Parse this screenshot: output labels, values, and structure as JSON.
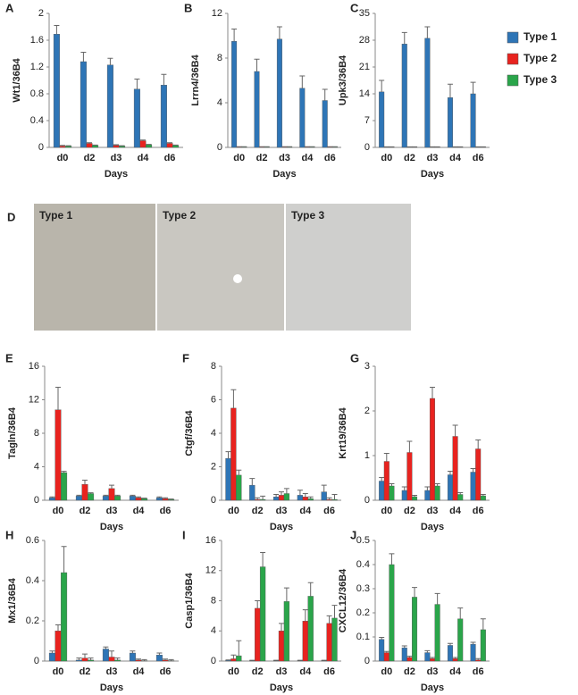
{
  "chart_data": [
    {
      "type": "bar",
      "panel": "A",
      "ylabel": "Wt1/36B4",
      "xlabel": "Days",
      "categories": [
        "d0",
        "d2",
        "d3",
        "d4",
        "d6"
      ],
      "ylim": [
        0,
        2
      ],
      "yticks": [
        0,
        0.4,
        0.8,
        1.2,
        1.6,
        2
      ],
      "series": [
        {
          "color": "#2e75b6",
          "values": [
            1.69,
            1.28,
            1.23,
            0.87,
            0.93
          ],
          "errors": [
            0.13,
            0.14,
            0.1,
            0.15,
            0.16
          ]
        },
        {
          "color": "#e8231f",
          "values": [
            0.02,
            0.06,
            0.03,
            0.1,
            0.06
          ],
          "errors": [
            0.01,
            0.01,
            0.01,
            0.01,
            0.01
          ]
        },
        {
          "color": "#2aa54a",
          "values": [
            0.02,
            0.03,
            0.02,
            0.04,
            0.03
          ],
          "errors": [
            0.005,
            0.005,
            0.005,
            0.005,
            0.005
          ]
        }
      ]
    },
    {
      "type": "bar",
      "panel": "B",
      "ylabel": "Lrrn4/36B4",
      "xlabel": "Days",
      "categories": [
        "d0",
        "d2",
        "d3",
        "d4",
        "d6"
      ],
      "ylim": [
        0,
        12
      ],
      "yticks": [
        0,
        4,
        8,
        12
      ],
      "series": [
        {
          "color": "#2e75b6",
          "values": [
            9.5,
            6.8,
            9.7,
            5.3,
            4.2
          ],
          "errors": [
            1.1,
            1.1,
            1.1,
            1.1,
            1.0
          ]
        },
        {
          "color": "#e8231f",
          "values": [
            0.05,
            0.05,
            0.05,
            0.05,
            0.05
          ],
          "errors": [
            0.01,
            0.01,
            0.01,
            0.01,
            0.01
          ]
        },
        {
          "color": "#2aa54a",
          "values": [
            0.05,
            0.05,
            0.05,
            0.05,
            0.05
          ],
          "errors": [
            0.01,
            0.01,
            0.01,
            0.01,
            0.01
          ]
        }
      ]
    },
    {
      "type": "bar",
      "panel": "C",
      "ylabel": "Upk3/36B4",
      "xlabel": "Days",
      "categories": [
        "d0",
        "d2",
        "d3",
        "d4",
        "d6"
      ],
      "ylim": [
        0,
        35
      ],
      "yticks": [
        0,
        7,
        14,
        21,
        28,
        35
      ],
      "legend": "right",
      "series": [
        {
          "name": "Type 1",
          "color": "#2e75b6",
          "values": [
            14.5,
            27,
            28.5,
            13,
            14
          ],
          "errors": [
            3,
            3,
            3,
            3.5,
            3
          ]
        },
        {
          "name": "Type 2",
          "color": "#e8231f",
          "values": [
            0.1,
            0.1,
            0.1,
            0.1,
            0.1
          ],
          "errors": [
            0.05,
            0.05,
            0.05,
            0.05,
            0.05
          ]
        },
        {
          "name": "Type 3",
          "color": "#2aa54a",
          "values": [
            0.1,
            0.1,
            0.1,
            0.1,
            0.1
          ],
          "errors": [
            0.05,
            0.05,
            0.05,
            0.05,
            0.05
          ]
        }
      ]
    },
    {
      "type": "bar",
      "panel": "E",
      "ylabel": "Tagln/36B4",
      "xlabel": "Days",
      "categories": [
        "d0",
        "d2",
        "d3",
        "d4",
        "d6"
      ],
      "ylim": [
        0,
        16
      ],
      "yticks": [
        0,
        4,
        8,
        12,
        16
      ],
      "series": [
        {
          "color": "#2e75b6",
          "values": [
            0.3,
            0.5,
            0.5,
            0.5,
            0.3
          ],
          "errors": [
            0.1,
            0.1,
            0.1,
            0.1,
            0.1
          ]
        },
        {
          "color": "#e8231f",
          "values": [
            10.8,
            1.9,
            1.4,
            0.3,
            0.2
          ],
          "errors": [
            2.7,
            0.5,
            0.4,
            0.1,
            0.1
          ]
        },
        {
          "color": "#2aa54a",
          "values": [
            3.3,
            0.8,
            0.5,
            0.2,
            0.1
          ],
          "errors": [
            0.15,
            0.1,
            0.1,
            0.05,
            0.05
          ]
        }
      ]
    },
    {
      "type": "bar",
      "panel": "F",
      "ylabel": "Ctgf/36B4",
      "xlabel": "Days",
      "categories": [
        "d0",
        "d2",
        "d3",
        "d4",
        "d6"
      ],
      "ylim": [
        0,
        8
      ],
      "yticks": [
        0,
        2,
        4,
        6,
        8
      ],
      "series": [
        {
          "color": "#2e75b6",
          "values": [
            2.5,
            0.9,
            0.2,
            0.3,
            0.5
          ],
          "errors": [
            0.4,
            0.4,
            0.15,
            0.3,
            0.4
          ]
        },
        {
          "color": "#e8231f",
          "values": [
            5.5,
            0.05,
            0.3,
            0.2,
            0.05
          ],
          "errors": [
            1.1,
            0.1,
            0.2,
            0.2,
            0.1
          ]
        },
        {
          "color": "#2aa54a",
          "values": [
            1.5,
            0.05,
            0.4,
            0.1,
            0.05
          ],
          "errors": [
            0.3,
            0.2,
            0.3,
            0.1,
            0.3
          ]
        }
      ]
    },
    {
      "type": "bar",
      "panel": "G",
      "ylabel": "Krt19/36B4",
      "xlabel": "Days",
      "categories": [
        "d0",
        "d2",
        "d3",
        "d4",
        "d6"
      ],
      "ylim": [
        0,
        3
      ],
      "yticks": [
        0,
        1,
        2,
        3
      ],
      "series": [
        {
          "color": "#2e75b6",
          "values": [
            0.43,
            0.22,
            0.22,
            0.57,
            0.63
          ],
          "errors": [
            0.08,
            0.08,
            0.08,
            0.08,
            0.08
          ]
        },
        {
          "color": "#e8231f",
          "values": [
            0.87,
            1.07,
            2.28,
            1.43,
            1.15
          ],
          "errors": [
            0.18,
            0.25,
            0.25,
            0.25,
            0.2
          ]
        },
        {
          "color": "#2aa54a",
          "values": [
            0.32,
            0.08,
            0.32,
            0.13,
            0.1
          ],
          "errors": [
            0.05,
            0.03,
            0.05,
            0.04,
            0.03
          ]
        }
      ]
    },
    {
      "type": "bar",
      "panel": "H",
      "ylabel": "Mx1/36B4",
      "xlabel": "Days",
      "categories": [
        "d0",
        "d2",
        "d3",
        "d4",
        "d6"
      ],
      "ylim": [
        0,
        0.6
      ],
      "yticks": [
        0,
        0.2,
        0.4,
        0.6
      ],
      "series": [
        {
          "color": "#2e75b6",
          "values": [
            0.04,
            0.005,
            0.06,
            0.04,
            0.03
          ],
          "errors": [
            0.01,
            0.01,
            0.01,
            0.01,
            0.01
          ]
        },
        {
          "color": "#e8231f",
          "values": [
            0.15,
            0.015,
            0.02,
            0.005,
            0.005
          ],
          "errors": [
            0.03,
            0.02,
            0.03,
            0.005,
            0.005
          ]
        },
        {
          "color": "#2aa54a",
          "values": [
            0.44,
            0.005,
            0.005,
            0.002,
            0.002
          ],
          "errors": [
            0.13,
            0.01,
            0.01,
            0.005,
            0.005
          ]
        }
      ]
    },
    {
      "type": "bar",
      "panel": "I",
      "ylabel": "Casp1/36B4",
      "xlabel": "Days",
      "categories": [
        "d0",
        "d2",
        "d3",
        "d4",
        "d6"
      ],
      "ylim": [
        0,
        16
      ],
      "yticks": [
        0,
        4,
        8,
        12,
        16
      ],
      "series": [
        {
          "color": "#2e75b6",
          "values": [
            0.1,
            0.05,
            0.05,
            0.05,
            0.05
          ],
          "errors": [
            0.05,
            0.05,
            0.05,
            0.05,
            0.05
          ]
        },
        {
          "color": "#e8231f",
          "values": [
            0.3,
            7,
            4,
            5.3,
            5
          ],
          "errors": [
            0.5,
            1,
            1,
            1.5,
            1
          ]
        },
        {
          "color": "#2aa54a",
          "values": [
            0.7,
            12.5,
            7.9,
            8.6,
            5.7
          ],
          "errors": [
            2,
            1.9,
            1.8,
            1.8,
            1.7
          ]
        }
      ]
    },
    {
      "type": "bar",
      "panel": "J",
      "ylabel": "CXCL12/36B4",
      "xlabel": "Days",
      "categories": [
        "d0",
        "d2",
        "d3",
        "d4",
        "d6"
      ],
      "ylim": [
        0,
        0.5
      ],
      "yticks": [
        0,
        0.1,
        0.2,
        0.3,
        0.4,
        0.5
      ],
      "series": [
        {
          "color": "#2e75b6",
          "values": [
            0.09,
            0.055,
            0.035,
            0.065,
            0.07
          ],
          "errors": [
            0.008,
            0.008,
            0.008,
            0.008,
            0.008
          ]
        },
        {
          "color": "#e8231f",
          "values": [
            0.035,
            0.015,
            0.01,
            0.01,
            0.005
          ],
          "errors": [
            0.005,
            0.005,
            0.005,
            0.005,
            0.005
          ]
        },
        {
          "color": "#2aa54a",
          "values": [
            0.4,
            0.265,
            0.235,
            0.175,
            0.13
          ],
          "errors": [
            0.045,
            0.04,
            0.045,
            0.045,
            0.045
          ]
        }
      ]
    }
  ],
  "panel_d": {
    "label": "D",
    "images": [
      "Type 1",
      "Type 2",
      "Type 3"
    ]
  }
}
